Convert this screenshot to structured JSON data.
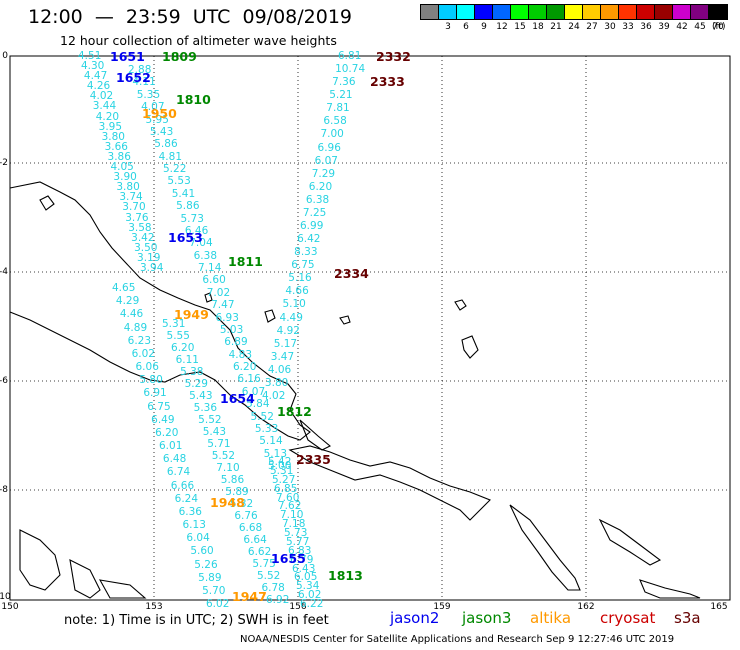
{
  "header": {
    "title": "12:00  —  23:59  UTC  09/08/2019",
    "subtitle": "12 hour collection of altimeter wave heights"
  },
  "legend": {
    "unit": "(ft)",
    "swatches": [
      {
        "color": "#808080",
        "label": ""
      },
      {
        "color": "#00ccff",
        "label": "3"
      },
      {
        "color": "#00ffff",
        "label": "6"
      },
      {
        "color": "#0000ff",
        "label": "9"
      },
      {
        "color": "#0066ff",
        "label": "12"
      },
      {
        "color": "#00ff00",
        "label": "15"
      },
      {
        "color": "#00cc00",
        "label": "18"
      },
      {
        "color": "#009900",
        "label": "21"
      },
      {
        "color": "#ffff00",
        "label": "24"
      },
      {
        "color": "#ffcc00",
        "label": "27"
      },
      {
        "color": "#ff9900",
        "label": "30"
      },
      {
        "color": "#ff3300",
        "label": "33"
      },
      {
        "color": "#cc0000",
        "label": "36"
      },
      {
        "color": "#990000",
        "label": "39"
      },
      {
        "color": "#cc00cc",
        "label": "42"
      },
      {
        "color": "#800080",
        "label": "45"
      },
      {
        "color": "#000000",
        "label": "70"
      }
    ]
  },
  "axes": {
    "y_labels": [
      "0",
      "-2",
      "-4",
      "-6",
      "-8",
      "-10"
    ],
    "x_labels": [
      "150",
      "153",
      "156",
      "159",
      "162",
      "165"
    ]
  },
  "colors": {
    "jason2": "#0000ee",
    "jason3": "#008800",
    "altika": "#ff9900",
    "cryosat": "#cc0000",
    "s3a": "#660000",
    "obs": "#29d3e2"
  },
  "track_labels": [
    {
      "t": "1651",
      "sat": "jason2"
    },
    {
      "t": "1652",
      "sat": "jason2"
    },
    {
      "t": "1653",
      "sat": "jason2"
    },
    {
      "t": "1654",
      "sat": "jason2"
    },
    {
      "t": "1655",
      "sat": "jason2"
    },
    {
      "t": "1809",
      "sat": "jason3"
    },
    {
      "t": "1810",
      "sat": "jason3"
    },
    {
      "t": "1811",
      "sat": "jason3"
    },
    {
      "t": "1812",
      "sat": "jason3"
    },
    {
      "t": "1813",
      "sat": "jason3"
    },
    {
      "t": "1950",
      "sat": "altika"
    },
    {
      "t": "1949",
      "sat": "altika"
    },
    {
      "t": "1948",
      "sat": "altika"
    },
    {
      "t": "1947",
      "sat": "altika"
    },
    {
      "t": "2332",
      "sat": "s3a"
    },
    {
      "t": "2333",
      "sat": "s3a"
    },
    {
      "t": "2334",
      "sat": "s3a"
    },
    {
      "t": "2335",
      "sat": "s3a"
    }
  ],
  "observations": {
    "track_a": [
      "4.51",
      "4.30",
      "4.47",
      "4.26",
      "4.02",
      "3.44",
      "4.20",
      "3.95",
      "3.80",
      "3.66",
      "3.86",
      "4.05",
      "3.90",
      "3.80",
      "3.74",
      "3.70",
      "3.76",
      "3.58",
      "3.42",
      "3.50",
      "3.19",
      "3.94"
    ],
    "track_b": [
      "2.88",
      "4.11",
      "5.35",
      "4.07",
      "5.95",
      "5.43",
      "5.86",
      "4.81",
      "5.22",
      "5.53",
      "5.41",
      "5.86",
      "5.73",
      "6.46",
      "7.04",
      "6.38",
      "7.14",
      "6.60",
      "7.02",
      "7.47",
      "6.93",
      "5.03",
      "6.89",
      "4.83",
      "6.20",
      "6.16",
      "6.07",
      "5.84",
      "5.52",
      "5.33",
      "5.14",
      "5.13",
      "5.00"
    ],
    "track_c": [
      "4.65",
      "4.29",
      "4.46",
      "4.89",
      "6.23",
      "6.02",
      "6.06",
      "5.80",
      "6.91",
      "6.75",
      "6.49",
      "6.20",
      "6.01",
      "6.48",
      "6.74",
      "6.66",
      "6.24",
      "6.36",
      "6.13",
      "6.04",
      "5.60",
      "5.26",
      "5.89",
      "5.70",
      "6.02"
    ],
    "track_d": [
      "5.31",
      "5.55",
      "6.20",
      "6.11",
      "5.38",
      "5.29",
      "5.43",
      "5.36",
      "5.52",
      "5.43",
      "5.71",
      "5.52",
      "7.10",
      "5.86",
      "5.89",
      "5.32",
      "6.76",
      "6.68",
      "6.64",
      "6.62",
      "5.75",
      "5.52",
      "6.78",
      "6.92"
    ],
    "track_e": [
      "6.81",
      "10.74",
      "7.36",
      "5.21",
      "7.81",
      "6.58",
      "7.00",
      "6.96",
      "6.07",
      "7.29",
      "6.20",
      "6.38",
      "7.25",
      "6.99",
      "6.42",
      "8.33",
      "6.75",
      "5.16",
      "4.66",
      "5.10",
      "4.49",
      "4.92",
      "5.17",
      "3.47",
      "4.06",
      "3.80",
      "4.02"
    ],
    "track_f": [
      "5.42",
      "5.31",
      "5.27",
      "6.85",
      "7.60",
      "7.62",
      "7.10",
      "7.18",
      "5.73",
      "5.77",
      "6.83",
      "6.79",
      "6.43",
      "6.05",
      "5.34",
      "6.02",
      "6.22"
    ]
  },
  "footer": {
    "note": "note:  1) Time is in UTC;  2) SWH is in feet",
    "sats": [
      {
        "label": "jason2",
        "color": "#0000ee"
      },
      {
        "label": "jason3",
        "color": "#008800"
      },
      {
        "label": "altika",
        "color": "#ff9900"
      },
      {
        "label": "cryosat",
        "color": "#cc0000"
      },
      {
        "label": "s3a",
        "color": "#660000"
      }
    ],
    "credit": "NOAA/NESDIS Center for Satellite Applications and Research    Sep  9 12:27:46 UTC 2019"
  }
}
